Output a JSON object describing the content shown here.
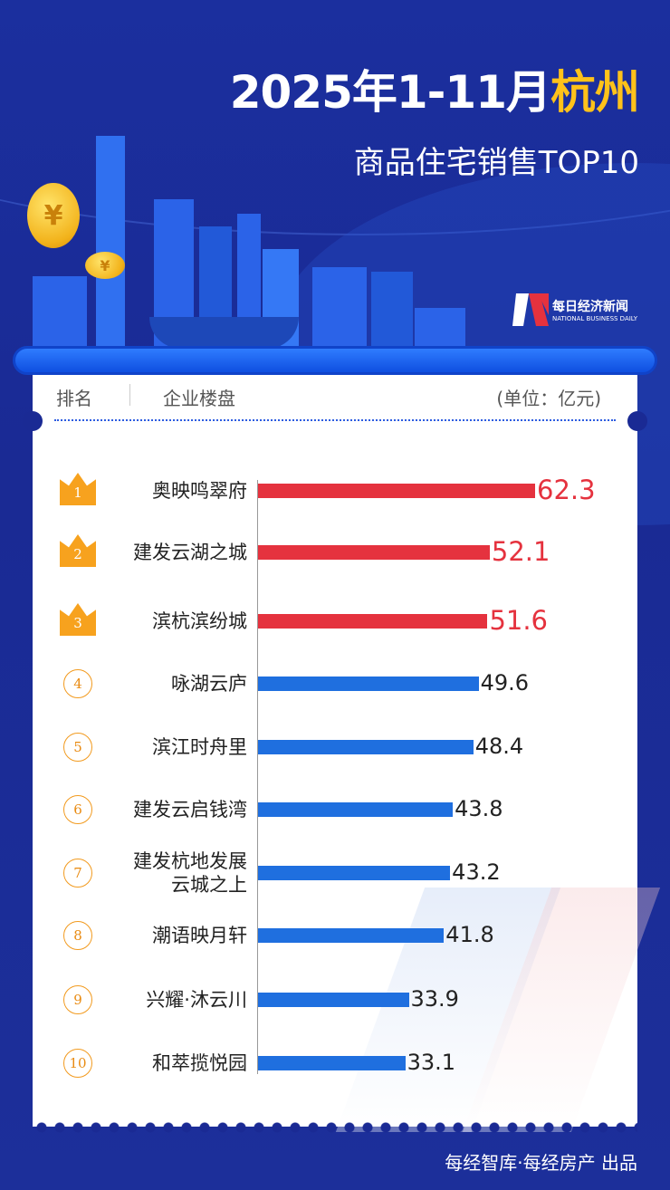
{
  "header": {
    "title_prefix": "2025年1-11月",
    "title_city": "杭州",
    "subtitle": "商品住宅销售TOP10"
  },
  "logo": {
    "cn": "每日经济新闻",
    "en": "NATIONAL BUSINESS DAILY"
  },
  "coin_symbol": "¥",
  "table_header": {
    "rank": "排名",
    "name": "企业楼盘",
    "unit": "(单位：亿元)"
  },
  "footer": "每经智库·每经房产  出品",
  "colors": {
    "top3": "#e5323e",
    "others": "#1f6fdf",
    "crown": "#f7a21e",
    "background": "#1a2a94"
  },
  "chart_data": {
    "type": "bar",
    "orientation": "horizontal",
    "unit": "亿元",
    "categories": [
      "奥映鸣翠府",
      "建发云湖之城",
      "滨杭滨纷城",
      "咏湖云庐",
      "滨江时舟里",
      "建发云启钱湾",
      "建发杭地发展云城之上",
      "潮语映月轩",
      "兴耀·沐云川",
      "和萃揽悦园"
    ],
    "ranks": [
      "1",
      "2",
      "3",
      "4",
      "5",
      "6",
      "7",
      "8",
      "9",
      "10"
    ],
    "values": [
      62.3,
      52.1,
      51.6,
      49.6,
      48.4,
      43.8,
      43.2,
      41.8,
      33.9,
      33.1
    ],
    "labels": [
      "62.3",
      "52.1",
      "51.6",
      "49.6",
      "48.4",
      "43.8",
      "43.2",
      "41.8",
      "33.9",
      "33.1"
    ]
  }
}
